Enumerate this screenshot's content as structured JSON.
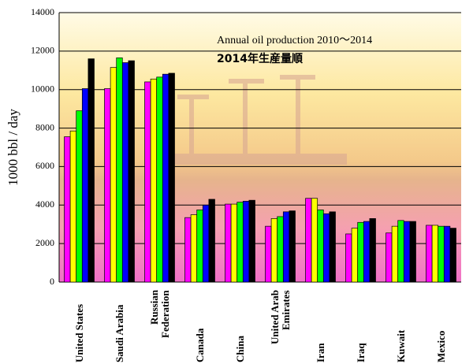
{
  "chart_data": {
    "type": "bar",
    "title": "Annual oil production 2010～2014",
    "subtitle": "2014年生産量順",
    "y_label": "1000 bbl / day",
    "categories": [
      "United States",
      "Saudi Arabia",
      "Russian Federation",
      "Canada",
      "China",
      "United Arab Emirates",
      "Iran",
      "Iraq",
      "Kuwait",
      "Mexico"
    ],
    "series": [
      {
        "color": "#ff00ff",
        "values": [
          7550,
          10050,
          10400,
          3350,
          4050,
          2900,
          4350,
          2500,
          2550,
          2950
        ]
      },
      {
        "color": "#ffff00",
        "values": [
          7850,
          11150,
          10550,
          3500,
          4050,
          3300,
          4350,
          2800,
          2900,
          2950
        ]
      },
      {
        "color": "#00ff00",
        "values": [
          8900,
          11650,
          10650,
          3750,
          4150,
          3400,
          3750,
          3100,
          3200,
          2900
        ]
      },
      {
        "color": "#0000ff",
        "values": [
          10050,
          11400,
          10800,
          4000,
          4200,
          3650,
          3550,
          3150,
          3150,
          2900
        ]
      },
      {
        "color": "#000000",
        "values": [
          11600,
          11500,
          10850,
          4300,
          4250,
          3700,
          3650,
          3300,
          3150,
          2800
        ]
      }
    ],
    "ylim": [
      0,
      14000
    ],
    "yticks": [
      0,
      2000,
      4000,
      6000,
      8000,
      10000,
      12000,
      14000
    ],
    "grid": true
  }
}
